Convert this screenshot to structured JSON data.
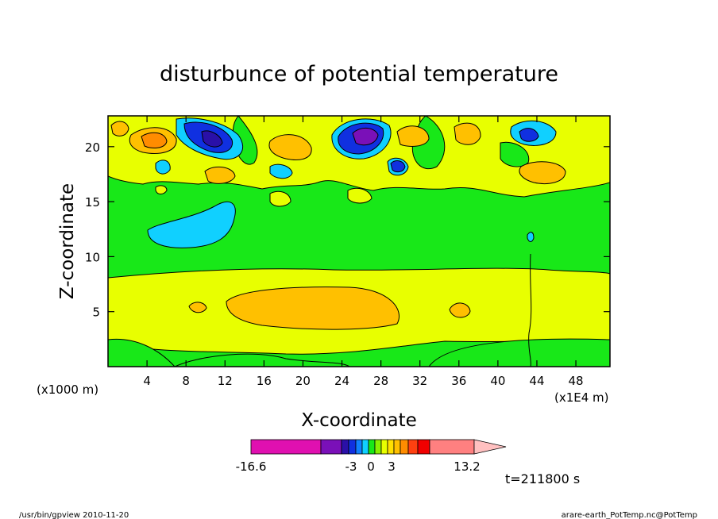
{
  "chart_data": {
    "type": "heatmap",
    "title": "disturbunce of potential temperature",
    "xlabel": "X-coordinate",
    "ylabel": "Z-coordinate",
    "x_scale_note": "(x1000 m)",
    "x_unit_note": "(x1E4 m)",
    "xlim": [
      0,
      51.5
    ],
    "ylim": [
      0,
      22.8
    ],
    "x_ticks": [
      "4",
      "8",
      "12",
      "16",
      "20",
      "24",
      "28",
      "32",
      "36",
      "40",
      "44",
      "48"
    ],
    "y_ticks": [
      "5",
      "10",
      "15",
      "20"
    ],
    "colorbar": {
      "labels": [
        "-16.6",
        "-3",
        "0",
        "3",
        "13.2"
      ],
      "colors": [
        "#e010b0",
        "#7a10b8",
        "#2a10a8",
        "#1030e0",
        "#1080ff",
        "#10d0ff",
        "#18e818",
        "#88f000",
        "#e8ff00",
        "#ffe000",
        "#ffc000",
        "#ff8c00",
        "#ff4010",
        "#f00000",
        "#ff8080",
        "#ffc0c0"
      ]
    },
    "time_label": "t=211800 s"
  },
  "footer": {
    "left": "/usr/bin/gpview  2010-11-20",
    "right": "arare-earth_PotTemp.nc@PotTemp"
  }
}
